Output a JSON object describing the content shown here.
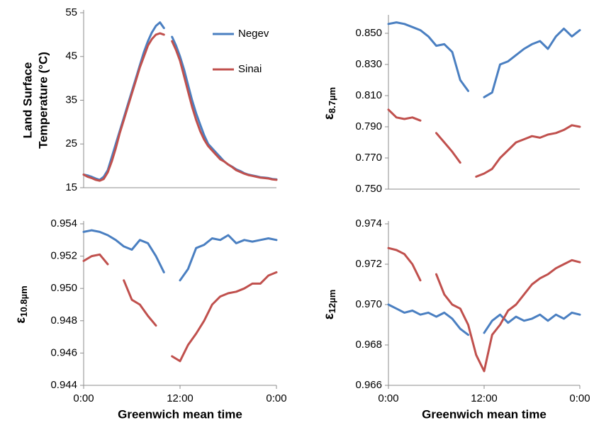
{
  "chart_data": [
    {
      "type": "line",
      "ylabel": [
        "Land Surface",
        "Temperature (°C)"
      ],
      "legend": "upper right",
      "x": [
        0,
        0.5,
        1,
        1.5,
        2,
        2.5,
        3,
        3.5,
        4,
        4.5,
        5,
        5.5,
        6,
        6.5,
        7,
        7.5,
        8,
        8.5,
        9,
        9.5,
        10,
        10.5,
        11,
        11.5,
        12,
        12.5,
        13,
        13.5,
        14,
        14.5,
        15,
        15.5,
        16,
        16.5,
        17,
        17.5,
        18,
        18.5,
        19,
        19.5,
        20,
        20.5,
        21,
        21.5,
        22,
        22.5,
        23,
        23.5,
        24
      ],
      "xlim": [
        0,
        24
      ],
      "ylim": [
        15,
        55
      ],
      "yticks": [
        15,
        25,
        35,
        45,
        55
      ],
      "series": [
        {
          "name": "Negev",
          "color": "#4a7fc1",
          "values": [
            18,
            17.8,
            17.5,
            17.1,
            16.8,
            17.5,
            19,
            22,
            25,
            28,
            31,
            34,
            37,
            40,
            43,
            46,
            48.5,
            50.5,
            52,
            52.8,
            51.5,
            null,
            49.5,
            47.5,
            45,
            42,
            38.5,
            35,
            32,
            29.5,
            27,
            25,
            24,
            23,
            22,
            21,
            20.3,
            19.8,
            19.2,
            18.8,
            18.3,
            18,
            17.8,
            17.6,
            17.4,
            17.3,
            17.2,
            17,
            16.9
          ]
        },
        {
          "name": "Sinai",
          "color": "#c0504d",
          "values": [
            18,
            17.5,
            17.2,
            16.8,
            16.6,
            17,
            18.5,
            21,
            24,
            27.5,
            30.5,
            33.5,
            36.5,
            39.5,
            42.5,
            45,
            47.5,
            49,
            50,
            50.3,
            50,
            null,
            48.5,
            46.5,
            44,
            40.5,
            37,
            33.5,
            30.5,
            28,
            26,
            24.5,
            23.5,
            22.5,
            21.5,
            21,
            20.3,
            19.7,
            19,
            18.6,
            18.2,
            17.9,
            17.7,
            17.5,
            17.3,
            17.2,
            17.1,
            16.9,
            16.8
          ]
        }
      ]
    },
    {
      "type": "line",
      "ylabel": {
        "symbol": "ε",
        "subscript": "8.7µm"
      },
      "x": [
        0,
        1,
        2,
        3,
        4,
        5,
        6,
        7,
        8,
        9,
        10,
        11,
        12,
        13,
        14,
        15,
        16,
        17,
        18,
        19,
        20,
        21,
        22,
        23,
        24
      ],
      "xlim": [
        0,
        24
      ],
      "ylim": [
        0.75,
        0.86
      ],
      "yticks": [
        {
          "value": 0.75,
          "label": "0.750"
        },
        {
          "value": 0.77,
          "label": "0.770"
        },
        {
          "value": 0.79,
          "label": "0.790"
        },
        {
          "value": 0.81,
          "label": "0.810"
        },
        {
          "value": 0.83,
          "label": "0.830"
        },
        {
          "value": 0.85,
          "label": "0.850"
        }
      ],
      "series": [
        {
          "name": "Negev",
          "color": "#4a7fc1",
          "values": [
            0.856,
            0.857,
            0.856,
            0.854,
            0.852,
            0.848,
            0.842,
            0.843,
            0.838,
            0.82,
            0.813,
            null,
            0.809,
            0.812,
            0.83,
            0.832,
            0.836,
            0.84,
            0.843,
            0.845,
            0.84,
            0.848,
            0.853,
            0.848,
            0.852
          ]
        },
        {
          "name": "Sinai",
          "color": "#c0504d",
          "values": [
            0.801,
            0.796,
            0.795,
            0.796,
            0.794,
            null,
            0.786,
            0.78,
            0.774,
            0.767,
            null,
            0.758,
            0.76,
            0.763,
            0.77,
            0.775,
            0.78,
            0.782,
            0.784,
            0.783,
            0.785,
            0.786,
            0.788,
            0.791,
            0.79
          ]
        }
      ]
    },
    {
      "type": "line",
      "ylabel": {
        "symbol": "ε",
        "subscript": "10.8µm"
      },
      "xlabel": "Greenwich mean time",
      "x": [
        0,
        1,
        2,
        3,
        4,
        5,
        6,
        7,
        8,
        9,
        10,
        11,
        12,
        13,
        14,
        15,
        16,
        17,
        18,
        19,
        20,
        21,
        22,
        23,
        24
      ],
      "xlim": [
        0,
        24
      ],
      "xticks": [
        {
          "value": 0,
          "label": "0:00"
        },
        {
          "value": 12,
          "label": "12:00"
        },
        {
          "value": 24,
          "label": "0:00"
        }
      ],
      "ylim": [
        0.944,
        0.954
      ],
      "yticks": [
        0.944,
        0.946,
        0.948,
        {
          "value": 0.95,
          "label": "0.950"
        },
        0.952,
        0.954
      ],
      "series": [
        {
          "name": "Negev",
          "color": "#4a7fc1",
          "values": [
            0.9535,
            0.9536,
            0.9535,
            0.9533,
            0.953,
            0.9526,
            0.9524,
            0.953,
            0.9528,
            0.952,
            0.951,
            null,
            0.9505,
            0.9512,
            0.9525,
            0.9527,
            0.9531,
            0.953,
            0.9533,
            0.9528,
            0.953,
            0.9529,
            0.953,
            0.9531,
            0.953
          ]
        },
        {
          "name": "Sinai",
          "color": "#c0504d",
          "values": [
            0.9517,
            0.952,
            0.9521,
            0.9515,
            null,
            0.9505,
            0.9493,
            0.949,
            0.9483,
            0.9477,
            null,
            0.9458,
            0.9455,
            0.9465,
            0.9472,
            0.948,
            0.949,
            0.9495,
            0.9497,
            0.9498,
            0.95,
            0.9503,
            0.9503,
            0.9508,
            0.951
          ]
        }
      ]
    },
    {
      "type": "line",
      "ylabel": {
        "symbol": "ε",
        "subscript": "12µm"
      },
      "xlabel": "Greenwich mean time",
      "x": [
        0,
        1,
        2,
        3,
        4,
        5,
        6,
        7,
        8,
        9,
        10,
        11,
        12,
        13,
        14,
        15,
        16,
        17,
        18,
        19,
        20,
        21,
        22,
        23,
        24
      ],
      "xlim": [
        0,
        24
      ],
      "xticks": [
        {
          "value": 0,
          "label": "0:00"
        },
        {
          "value": 12,
          "label": "12:00"
        },
        {
          "value": 24,
          "label": "0:00"
        }
      ],
      "ylim": [
        0.966,
        0.974
      ],
      "yticks": [
        0.966,
        0.968,
        {
          "value": 0.97,
          "label": "0.970"
        },
        0.972,
        0.974
      ],
      "series": [
        {
          "name": "Negev",
          "color": "#4a7fc1",
          "values": [
            0.97,
            0.9698,
            0.9696,
            0.9697,
            0.9695,
            0.9696,
            0.9694,
            0.9696,
            0.9693,
            0.9688,
            0.9685,
            null,
            0.9686,
            0.9692,
            0.9695,
            0.9691,
            0.9694,
            0.9692,
            0.9693,
            0.9695,
            0.9692,
            0.9695,
            0.9693,
            0.9696,
            0.9695
          ]
        },
        {
          "name": "Sinai",
          "color": "#c0504d",
          "values": [
            0.9728,
            0.9727,
            0.9725,
            0.972,
            0.9712,
            null,
            0.9715,
            0.9705,
            0.97,
            0.9698,
            0.969,
            0.9675,
            0.9667,
            0.9685,
            0.969,
            0.9697,
            0.97,
            0.9705,
            0.971,
            0.9713,
            0.9715,
            0.9718,
            0.972,
            0.9722,
            0.9721
          ]
        }
      ]
    }
  ]
}
